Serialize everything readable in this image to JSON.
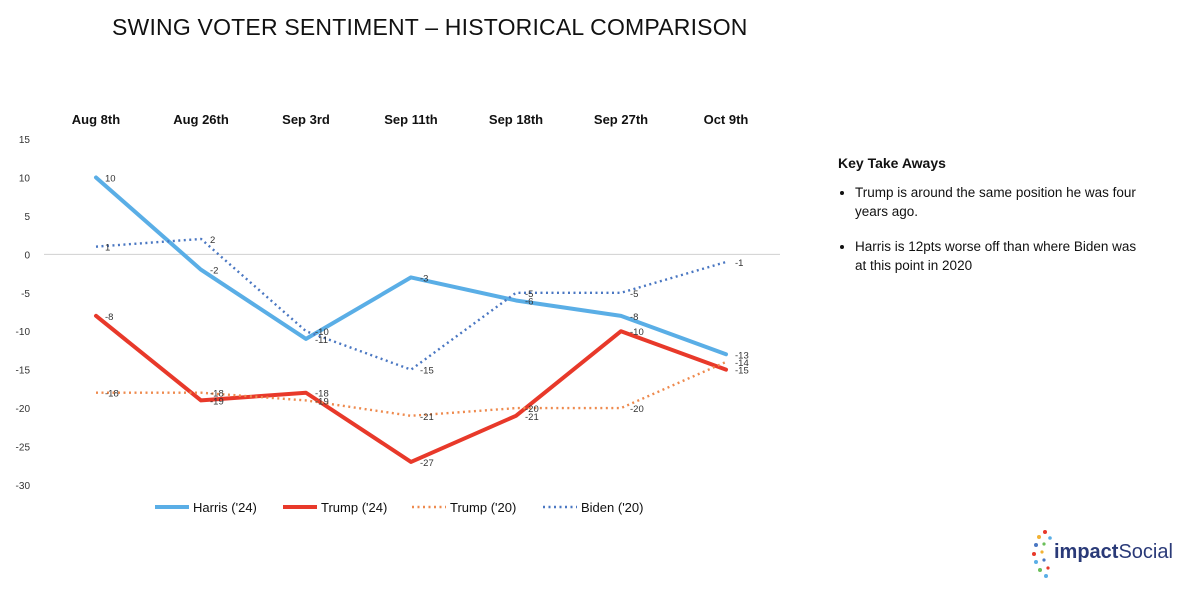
{
  "title": "SWING VOTER SENTIMENT – HISTORICAL COMPARISON",
  "takeaways": {
    "heading": "Key Take Aways",
    "items": [
      "Trump is around the same position he was four years ago.",
      "Harris is 12pts worse off than where Biden was at this point in 2020"
    ]
  },
  "logo": {
    "prefix": "impact",
    "suffix": "Social"
  },
  "chart_data": {
    "type": "line",
    "categories": [
      "Aug 8th",
      "Aug 26th",
      "Sep 3rd",
      "Sep 11th",
      "Sep 18th",
      "Sep 27th",
      "Oct 9th"
    ],
    "ylim": [
      -30,
      15
    ],
    "yticks": [
      15,
      10,
      5,
      0,
      -5,
      -10,
      -15,
      -20,
      -25,
      -30
    ],
    "legend_position": "bottom",
    "series": [
      {
        "name": "Harris ('24)",
        "values": [
          10,
          -2,
          -11,
          -3,
          -6,
          -8,
          -13
        ],
        "color": "#5aaee6",
        "style": "solid"
      },
      {
        "name": "Trump ('24)",
        "values": [
          -8,
          -19,
          -18,
          -27,
          -21,
          -10,
          -15
        ],
        "color": "#e8392a",
        "style": "solid"
      },
      {
        "name": "Trump ('20)",
        "values": [
          -18,
          -18,
          -19,
          -21,
          -20,
          -20,
          -14
        ],
        "color": "#ee8a4e",
        "style": "dotted"
      },
      {
        "name": "Biden ('20)",
        "values": [
          1,
          2,
          -10,
          -15,
          -5,
          -5,
          -1
        ],
        "color": "#4a77c2",
        "style": "dotted"
      }
    ]
  }
}
